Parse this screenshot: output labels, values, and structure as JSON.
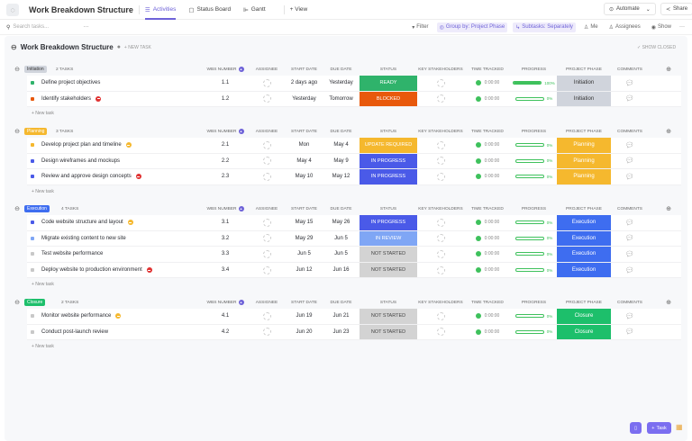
{
  "header": {
    "title": "Work Breakdown Structure",
    "tabs": [
      {
        "label": "Activities",
        "icon": "list-icon"
      },
      {
        "label": "Status Board",
        "icon": "board-icon"
      },
      {
        "label": "Gantt",
        "icon": "gantt-icon"
      }
    ],
    "add_view": "+ View",
    "automate": "Automate",
    "share": "Share"
  },
  "toolbar": {
    "search_placeholder": "Search tasks...",
    "filter": "Filter",
    "group_by": "Group by: Project Phase",
    "subtasks": "Subtasks: Separately",
    "me": "Me",
    "assignees": "Assignees",
    "show": "Show"
  },
  "list": {
    "title": "Work Breakdown Structure",
    "new_task": "+ NEW TASK",
    "show_closed": "✓ SHOW CLOSED"
  },
  "columns": [
    "WBS NUMBER",
    "ASSIGNEE",
    "START DATE",
    "DUE DATE",
    "STATUS",
    "KEY STAKEHOLDERS",
    "TIME TRACKED",
    "PROGRESS",
    "PROJECT PHASE",
    "COMMENTS"
  ],
  "new_task_label": "+ New task",
  "status_colors": {
    "READY": "#2fb36b",
    "BLOCKED": "#e8590c",
    "UPDATE REQUIRED": "#f5b82e",
    "IN PROGRESS": "#4a5ae8",
    "IN REVIEW": "#7fa6f5",
    "NOT STARTED": "#d3d3d3"
  },
  "groups": [
    {
      "name": "Initiation",
      "count": "2 TASKS",
      "color": "#d0d4dc",
      "text": "#333",
      "tasks": [
        {
          "name": "Define project objectives",
          "dot": "#2fb36b",
          "wbs": "1.1",
          "start": "2 days ago",
          "due": "Yesterday",
          "status": "READY",
          "time": "0:00:00",
          "progress": 100,
          "phase": "Initiation"
        },
        {
          "name": "Identify stakeholders",
          "dot": "#e8590c",
          "priority": "#e03131",
          "wbs": "1.2",
          "start": "Yesterday",
          "due": "Tomorrow",
          "status": "BLOCKED",
          "time": "0:00:00",
          "progress": 0,
          "phase": "Initiation"
        }
      ]
    },
    {
      "name": "Planning",
      "count": "3 TASKS",
      "color": "#f5b82e",
      "text": "#fff",
      "tasks": [
        {
          "name": "Develop project plan and timeline",
          "dot": "#f5b82e",
          "priority": "#f5b82e",
          "wbs": "2.1",
          "start": "Mon",
          "due": "May 4",
          "status": "UPDATE REQUIRED",
          "time": "0:00:00",
          "progress": 0,
          "phase": "Planning"
        },
        {
          "name": "Design wireframes and mockups",
          "dot": "#4a5ae8",
          "wbs": "2.2",
          "start": "May 4",
          "due": "May 9",
          "status": "IN PROGRESS",
          "time": "0:00:00",
          "progress": 0,
          "phase": "Planning"
        },
        {
          "name": "Review and approve design concepts",
          "dot": "#4a5ae8",
          "priority": "#e03131",
          "wbs": "2.3",
          "start": "May 10",
          "due": "May 12",
          "status": "IN PROGRESS",
          "time": "0:00:00",
          "progress": 0,
          "phase": "Planning"
        }
      ]
    },
    {
      "name": "Execution",
      "count": "4 TASKS",
      "color": "#3e6df0",
      "text": "#fff",
      "tasks": [
        {
          "name": "Code website structure and layout",
          "dot": "#4a5ae8",
          "priority": "#f5b82e",
          "wbs": "3.1",
          "start": "May 15",
          "due": "May 26",
          "status": "IN PROGRESS",
          "time": "0:00:00",
          "progress": 0,
          "phase": "Execution"
        },
        {
          "name": "Migrate existing content to new site",
          "dot": "#7fa6f5",
          "wbs": "3.2",
          "start": "May 29",
          "due": "Jun 5",
          "status": "IN REVIEW",
          "time": "0:00:00",
          "progress": 0,
          "phase": "Execution"
        },
        {
          "name": "Test website performance",
          "dot": "#c8c8c8",
          "wbs": "3.3",
          "start": "Jun 5",
          "due": "Jun 5",
          "status": "NOT STARTED",
          "time": "0:00:00",
          "progress": 0,
          "phase": "Execution"
        },
        {
          "name": "Deploy website to production environment",
          "dot": "#c8c8c8",
          "priority": "#e03131",
          "wbs": "3.4",
          "start": "Jun 12",
          "due": "Jun 16",
          "status": "NOT STARTED",
          "time": "0:00:00",
          "progress": 0,
          "phase": "Execution"
        }
      ]
    },
    {
      "name": "Closure",
      "count": "2 TASKS",
      "color": "#1dbf6b",
      "text": "#fff",
      "tasks": [
        {
          "name": "Monitor website performance",
          "dot": "#c8c8c8",
          "priority": "#f5b82e",
          "wbs": "4.1",
          "start": "Jun 19",
          "due": "Jun 21",
          "status": "NOT STARTED",
          "time": "0:00:00",
          "progress": 0,
          "phase": "Closure"
        },
        {
          "name": "Conduct post-launch review",
          "dot": "#c8c8c8",
          "wbs": "4.2",
          "start": "Jun 20",
          "due": "Jun 23",
          "status": "NOT STARTED",
          "time": "0:00:00",
          "progress": 0,
          "phase": "Closure"
        }
      ]
    }
  ],
  "fab": {
    "task": "Task"
  }
}
